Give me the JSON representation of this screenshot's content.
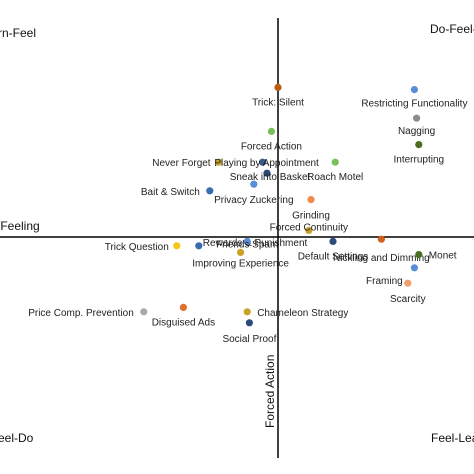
{
  "chart_data": {
    "type": "scatter",
    "xlim": [
      -10,
      10
    ],
    "ylim": [
      -10,
      10
    ],
    "grid": false,
    "legend": "none",
    "corner_labels": {
      "top_left": "rn-Feel",
      "top_right": "Do-Feel-",
      "bottom_left": "eel-Do",
      "bottom_right": "Feel-Lea"
    },
    "axis_labels": {
      "x_left": "/Feeling",
      "y_bottom": "Forced Action"
    },
    "points": [
      {
        "label": "Trick: Silent",
        "x": 0.0,
        "y": 6.8,
        "color": "#b85c12"
      },
      {
        "label": "Restricting Functionality",
        "x": 6.2,
        "y": 6.7,
        "color": "#5b8dd6"
      },
      {
        "label": "Nagging",
        "x": 6.3,
        "y": 5.4,
        "color": "#8c8c8c"
      },
      {
        "label": "Interrupting",
        "x": 6.4,
        "y": 4.2,
        "color": "#4a6e22"
      },
      {
        "label": "Forced Action",
        "x": -0.3,
        "y": 4.8,
        "color": "#7ac05a"
      },
      {
        "label": "Never Forget",
        "x": -2.7,
        "y": 3.4,
        "color": "#c9a227"
      },
      {
        "label": "Playing by Appointment",
        "x": -0.7,
        "y": 3.4,
        "color": "#3a5a8c"
      },
      {
        "label": "Roach Motel",
        "x": 2.6,
        "y": 3.4,
        "color": "#7ac05a"
      },
      {
        "label": "Sneak into Basket",
        "x": -0.5,
        "y": 2.9,
        "color": "#2c4a7a"
      },
      {
        "label": "Bait & Switch",
        "x": -3.1,
        "y": 2.1,
        "color": "#3a6ab0"
      },
      {
        "label": "Privacy Zuckering",
        "x": -1.1,
        "y": 2.4,
        "color": "#5b8dd6"
      },
      {
        "label": "Grinding",
        "x": 1.5,
        "y": 1.7,
        "color": "#f08a4b"
      },
      {
        "label": "Forced Continuity",
        "x": 1.4,
        "y": 0.3,
        "color": "#c9a227"
      },
      {
        "label": "Nickling and Dimming",
        "x": 4.7,
        "y": -0.1,
        "color": "#d0601e"
      },
      {
        "label": "Default Settings",
        "x": 2.5,
        "y": -0.2,
        "color": "#2c4a7a"
      },
      {
        "label": "Monet",
        "x": 6.4,
        "y": -0.8,
        "color": "#4a6e22"
      },
      {
        "label": "Framing",
        "x": 6.2,
        "y": -1.4,
        "color": "#5b8dd6"
      },
      {
        "label": "Scarcity",
        "x": 5.9,
        "y": -2.1,
        "color": "#f0a070"
      },
      {
        "label": "Trick Question",
        "x": -4.6,
        "y": -0.4,
        "color": "#f5c518"
      },
      {
        "label": "Rewards & Punishment",
        "x": -3.6,
        "y": -0.4,
        "color": "#3a6ab0"
      },
      {
        "label": "Friends Spam",
        "x": -1.4,
        "y": -0.2,
        "color": "#5b8dd6"
      },
      {
        "label": "Improving Experience",
        "x": -1.7,
        "y": -0.7,
        "color": "#c9a227"
      },
      {
        "label": "Price Comp. Prevention",
        "x": -6.1,
        "y": -3.4,
        "color": "#aaaaaa"
      },
      {
        "label": "Disguised Ads",
        "x": -4.3,
        "y": -3.2,
        "color": "#e07030"
      },
      {
        "label": "Chameleon Strategy",
        "x": -1.4,
        "y": -3.4,
        "color": "#c9a227"
      },
      {
        "label": "Social Proof",
        "x": -1.3,
        "y": -3.9,
        "color": "#2c4a7a"
      }
    ]
  }
}
